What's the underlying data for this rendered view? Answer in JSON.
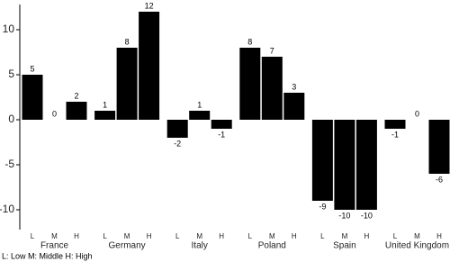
{
  "chart_data": {
    "type": "bar",
    "categories": [
      "France",
      "Germany",
      "Italy",
      "Poland",
      "Spain",
      "United Kingdom"
    ],
    "series": [
      {
        "name": "L",
        "color": "#000000",
        "values": [
          5,
          1,
          -2,
          8,
          -9,
          -1
        ]
      },
      {
        "name": "M",
        "color": "#000000",
        "values": [
          0,
          8,
          1,
          7,
          -10,
          0
        ]
      },
      {
        "name": "H",
        "color": "#000000",
        "values": [
          2,
          12,
          -1,
          3,
          -10,
          -6
        ]
      }
    ],
    "ylim": [
      -12.2,
      12.8
    ],
    "yticks": [
      -10,
      -5,
      0,
      5,
      10
    ],
    "grid": false,
    "note": "L: Low M: Middle H: High"
  }
}
